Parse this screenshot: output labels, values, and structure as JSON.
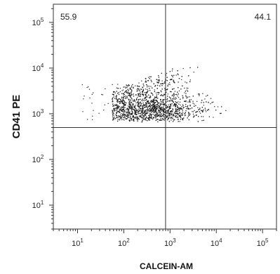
{
  "chart_data": {
    "type": "scatter",
    "title": "",
    "xlabel": "CALCEIN-AM",
    "ylabel": "CD41 PE",
    "x_scale": "log",
    "y_scale": "log",
    "xlim": [
      3,
      200000
    ],
    "ylim": [
      3,
      250000
    ],
    "x_ticks": [
      {
        "base": "10",
        "exp": "1",
        "value": 10
      },
      {
        "base": "10",
        "exp": "2",
        "value": 100
      },
      {
        "base": "10",
        "exp": "3",
        "value": 1000
      },
      {
        "base": "10",
        "exp": "4",
        "value": 10000
      },
      {
        "base": "10",
        "exp": "5",
        "value": 100000
      }
    ],
    "y_ticks": [
      {
        "base": "10",
        "exp": "1",
        "value": 10
      },
      {
        "base": "10",
        "exp": "2",
        "value": 100
      },
      {
        "base": "10",
        "exp": "3",
        "value": 1000
      },
      {
        "base": "10",
        "exp": "4",
        "value": 10000
      },
      {
        "base": "10",
        "exp": "5",
        "value": 100000
      }
    ],
    "gates": {
      "x_threshold": 800,
      "y_threshold": 500
    },
    "quadrant_labels": [
      {
        "position": "upper-left",
        "text": "55.9"
      },
      {
        "position": "upper-right",
        "text": "44.1"
      }
    ],
    "points_approx": {
      "description_count": 2600,
      "cluster": {
        "x_range": [
          60,
          20000
        ],
        "y_range": [
          600,
          25000
        ],
        "densest_x": [
          150,
          3000
        ],
        "densest_y": [
          800,
          3000
        ]
      }
    },
    "grid": false,
    "legend": "none",
    "colors": {
      "points": "#1a1a1a",
      "axes": "#333333",
      "gate": "#333333"
    }
  }
}
